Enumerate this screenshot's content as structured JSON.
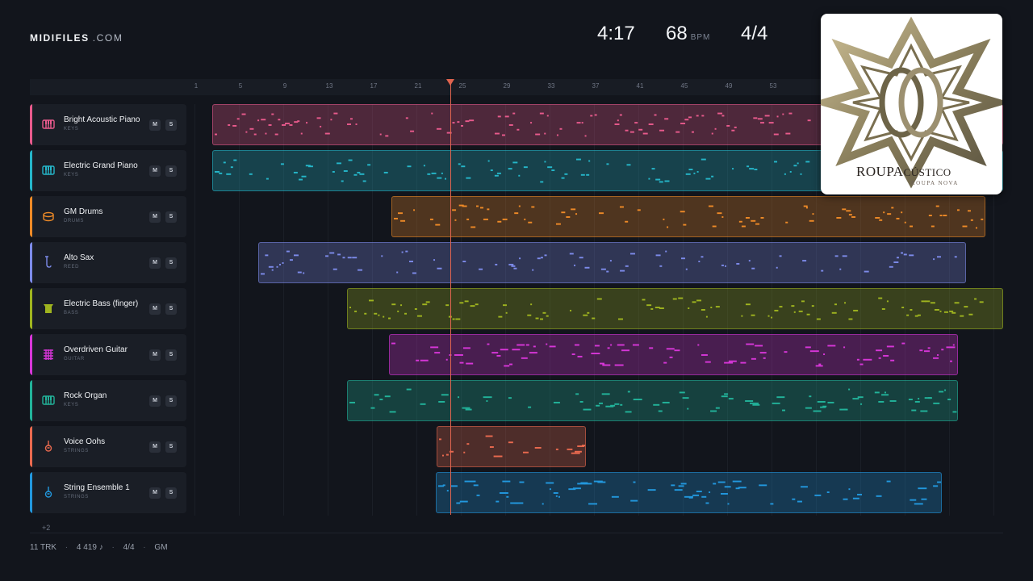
{
  "brand": {
    "name": "MIDIFILES",
    "suffix": ".COM"
  },
  "stats": {
    "duration": "4:17",
    "tempo": "68",
    "tempo_unit": "BPM",
    "time_signature": "4/4"
  },
  "ruler": {
    "ticks": [
      "1",
      "5",
      "9",
      "13",
      "17",
      "21",
      "25",
      "29",
      "33",
      "37",
      "41",
      "45",
      "49",
      "53"
    ]
  },
  "tracks": [
    {
      "name": "Bright Acoustic Piano",
      "category": "KEYS",
      "color": "#e85a8c",
      "icon": "piano-icon",
      "mute": "M",
      "solo": "S"
    },
    {
      "name": "Electric Grand Piano",
      "category": "KEYS",
      "color": "#25b6c9",
      "icon": "piano-icon",
      "mute": "M",
      "solo": "S"
    },
    {
      "name": "GM Drums",
      "category": "DRUMS",
      "color": "#ee8a27",
      "icon": "drum-icon",
      "mute": "M",
      "solo": "S"
    },
    {
      "name": "Alto Sax",
      "category": "REED",
      "color": "#7d8bea",
      "icon": "saxophone-icon",
      "mute": "M",
      "solo": "S"
    },
    {
      "name": "Electric Bass (finger)",
      "category": "BASS",
      "color": "#9fb41f",
      "icon": "bass-icon",
      "mute": "M",
      "solo": "S"
    },
    {
      "name": "Overdriven Guitar",
      "category": "GUITAR",
      "color": "#d736d8",
      "icon": "guitar-grid-icon",
      "mute": "M",
      "solo": "S"
    },
    {
      "name": "Rock Organ",
      "category": "KEYS",
      "color": "#22b39a",
      "icon": "piano-icon",
      "mute": "M",
      "solo": "S"
    },
    {
      "name": "Voice Oohs",
      "category": "STRINGS",
      "color": "#ea6a4f",
      "icon": "violin-icon",
      "mute": "M",
      "solo": "S"
    },
    {
      "name": "String Ensemble 1",
      "category": "STRINGS",
      "color": "#2298de",
      "icon": "violin-icon",
      "mute": "M",
      "solo": "S"
    }
  ],
  "more_tracks": "+2",
  "footer": {
    "tracks": "11 TRK",
    "notes": "4 419 ♪",
    "time_signature": "4/4",
    "standard": "GM",
    "separator": "·"
  },
  "album": {
    "title_main": "ROUPA",
    "title_suffix": "CÚSTICO",
    "artist": "ROUPA NOVA"
  }
}
